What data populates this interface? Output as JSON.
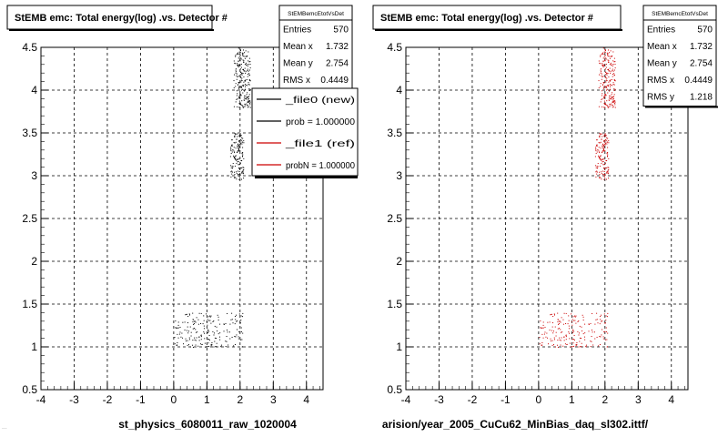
{
  "footer_note": "...",
  "chart_data": [
    {
      "type": "scatter",
      "title": "StEMB emc: Total energy(log) .vs. Detector #",
      "xlabel": "st_physics_6080011_raw_1020004",
      "ylabel": "",
      "xlim": [
        -4,
        4.5
      ],
      "ylim": [
        0.5,
        4.5
      ],
      "x_ticks": [
        "-4",
        "-3",
        "-2",
        "-1",
        "0",
        "1",
        "2",
        "3",
        "4"
      ],
      "y_ticks": [
        "0.5",
        "1",
        "1.5",
        "2",
        "2.5",
        "3",
        "3.5",
        "4",
        "4.5"
      ],
      "grid": true,
      "marker_color": "#000000",
      "clusters": [
        {
          "x_range": [
            1.8,
            2.3
          ],
          "y_range": [
            3.8,
            4.5
          ],
          "count": 220
        },
        {
          "x_range": [
            1.7,
            2.1
          ],
          "y_range": [
            2.95,
            3.5
          ],
          "count": 150
        },
        {
          "x_range": [
            0.0,
            2.1
          ],
          "y_range": [
            1.0,
            1.4
          ],
          "count": 200
        }
      ],
      "stats": {
        "name": "StEMBemcEtotVsDet",
        "rows": [
          {
            "label": "Entries",
            "value": "570"
          },
          {
            "label": "Mean x",
            "value": "1.732"
          },
          {
            "label": "Mean y",
            "value": "2.754"
          },
          {
            "label": "RMS x",
            "value": "0.4449"
          }
        ]
      },
      "legend": {
        "placement": "right",
        "entries": [
          {
            "label": "_file0 (new)",
            "color": "#000000"
          },
          {
            "label": "prob = 1.000000",
            "color": "#000000"
          },
          {
            "label": "_file1 (ref)",
            "color": "#cc0000"
          },
          {
            "label": "probN = 1.000000",
            "color": "#cc0000"
          }
        ]
      }
    },
    {
      "type": "scatter",
      "title": "StEMB emc: Total energy(log) .vs. Detector #",
      "xlabel": "arision/year_2005_CuCu62_MinBias_daq_sl302.ittf/",
      "ylabel": "",
      "xlim": [
        -4,
        4.5
      ],
      "ylim": [
        0.5,
        4.5
      ],
      "x_ticks": [
        "-4",
        "-3",
        "-2",
        "-1",
        "0",
        "1",
        "2",
        "3",
        "4"
      ],
      "y_ticks": [
        "0.5",
        "1",
        "1.5",
        "2",
        "2.5",
        "3",
        "3.5",
        "4",
        "4.5"
      ],
      "grid": true,
      "marker_color": "#cc0000",
      "clusters": [
        {
          "x_range": [
            1.8,
            2.3
          ],
          "y_range": [
            3.8,
            4.5
          ],
          "count": 220
        },
        {
          "x_range": [
            1.7,
            2.1
          ],
          "y_range": [
            2.95,
            3.5
          ],
          "count": 150
        },
        {
          "x_range": [
            0.0,
            2.1
          ],
          "y_range": [
            1.0,
            1.4
          ],
          "count": 200
        }
      ],
      "stats": {
        "name": "StEMBemcEtotVsDet",
        "rows": [
          {
            "label": "Entries",
            "value": "570"
          },
          {
            "label": "Mean x",
            "value": "1.732"
          },
          {
            "label": "Mean y",
            "value": "2.754"
          },
          {
            "label": "RMS x",
            "value": "0.4449"
          },
          {
            "label": "RMS y",
            "value": "1.218"
          }
        ]
      },
      "legend": null
    }
  ]
}
